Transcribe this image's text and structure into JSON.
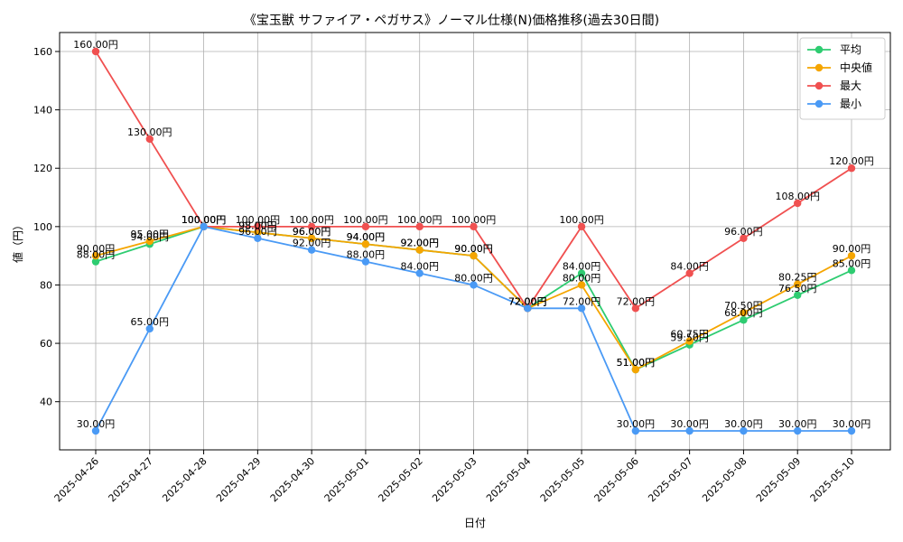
{
  "chart_data": {
    "type": "line",
    "title": "《宝玉獣 サファイア・ペガサス》ノーマル仕様(N)価格推移(過去30日間)",
    "xlabel": "日付",
    "ylabel": "値（円）",
    "ylim": [
      23.5,
      166.5
    ],
    "yticks": [
      40,
      60,
      80,
      100,
      120,
      140,
      160
    ],
    "grid": true,
    "legend_position": "top-right",
    "label_suffix": "円",
    "categories": [
      "2025-04-26",
      "2025-04-27",
      "2025-04-28",
      "2025-04-29",
      "2025-04-30",
      "2025-05-01",
      "2025-05-02",
      "2025-05-03",
      "2025-05-04",
      "2025-05-05",
      "2025-05-06",
      "2025-05-07",
      "2025-05-08",
      "2025-05-09",
      "2025-05-10"
    ],
    "series": [
      {
        "name": "平均",
        "color": "#2ecc71",
        "values": [
          88.0,
          94.0,
          100.0,
          98.0,
          96.0,
          94.0,
          92.0,
          90.0,
          72.0,
          84.0,
          51.0,
          59.5,
          68.0,
          76.5,
          85.0
        ]
      },
      {
        "name": "中央値",
        "color": "#f5a500",
        "values": [
          90.0,
          95.0,
          100.0,
          98.0,
          96.0,
          94.0,
          92.0,
          90.0,
          72.0,
          80.0,
          51.0,
          60.75,
          70.5,
          80.25,
          90.0
        ]
      },
      {
        "name": "最大",
        "color": "#f05050",
        "values": [
          160.0,
          130.0,
          100.0,
          100.0,
          100.0,
          100.0,
          100.0,
          100.0,
          72.0,
          100.0,
          72.0,
          84.0,
          96.0,
          108.0,
          120.0
        ]
      },
      {
        "name": "最小",
        "color": "#4a9af5",
        "values": [
          30.0,
          65.0,
          100.0,
          96.0,
          92.0,
          88.0,
          84.0,
          80.0,
          72.0,
          72.0,
          30.0,
          30.0,
          30.0,
          30.0,
          30.0
        ]
      }
    ]
  }
}
